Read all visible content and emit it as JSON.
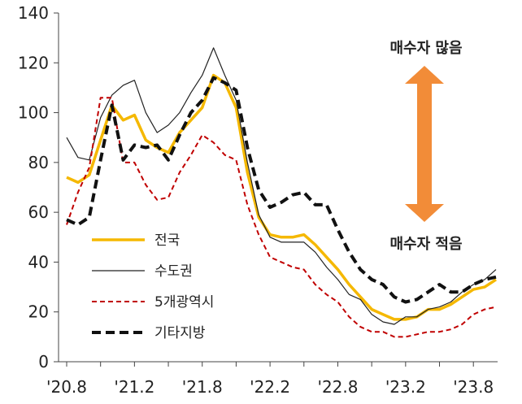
{
  "chart_data": {
    "type": "line",
    "title": "",
    "xlabel": "",
    "ylabel": "",
    "ylim": [
      0,
      140
    ],
    "yticks": [
      0,
      20,
      40,
      60,
      80,
      100,
      120,
      140
    ],
    "grid": false,
    "legend_placement": "bottom-left",
    "x_tick_labels": [
      "'20.8",
      "'21.2",
      "'21.8",
      "'22.2",
      "'22.8",
      "'23.2",
      "'23.8"
    ],
    "x_tick_months": [
      0,
      6,
      12,
      18,
      24,
      30,
      36
    ],
    "series": [
      {
        "name": "전국",
        "color": "#f5b800",
        "style": "solid-thick",
        "values": [
          74,
          72,
          75,
          89,
          103,
          97,
          99,
          89,
          86,
          84,
          92,
          97,
          102,
          115,
          112,
          102,
          76,
          58,
          51,
          50,
          50,
          51,
          47,
          42,
          37,
          31,
          26,
          21,
          19,
          17,
          17,
          18,
          21,
          21,
          23,
          26,
          29,
          30,
          33
        ]
      },
      {
        "name": "수도권",
        "color": "#222222",
        "style": "solid-thin",
        "values": [
          90,
          82,
          81,
          98,
          107,
          111,
          113,
          100,
          92,
          95,
          100,
          108,
          115,
          126,
          115,
          105,
          80,
          59,
          50,
          48,
          48,
          48,
          44,
          38,
          33,
          27,
          25,
          19,
          16,
          15,
          18,
          18,
          21,
          22,
          24,
          28,
          31,
          33,
          37
        ]
      },
      {
        "name": "5개광역시",
        "color": "#c00000",
        "style": "dashed-thin",
        "values": [
          55,
          68,
          78,
          106,
          106,
          80,
          80,
          71,
          65,
          66,
          76,
          83,
          91,
          88,
          83,
          81,
          63,
          51,
          42,
          40,
          38,
          37,
          31,
          27,
          24,
          18,
          14,
          12,
          12,
          10,
          10,
          11,
          12,
          12,
          13,
          15,
          19,
          21,
          22
        ]
      },
      {
        "name": "기타지방",
        "color": "#111111",
        "style": "dashed-thick",
        "values": [
          57,
          55,
          58,
          81,
          103,
          81,
          87,
          86,
          87,
          81,
          91,
          100,
          105,
          114,
          112,
          109,
          86,
          69,
          62,
          64,
          67,
          68,
          63,
          63,
          53,
          44,
          37,
          33,
          31,
          26,
          24,
          25,
          28,
          31,
          28,
          28,
          31,
          33,
          34
        ]
      }
    ],
    "annotations": {
      "top": "매수자 많음",
      "bottom": "매수자 적음",
      "arrow_color": "#f28c38"
    }
  }
}
